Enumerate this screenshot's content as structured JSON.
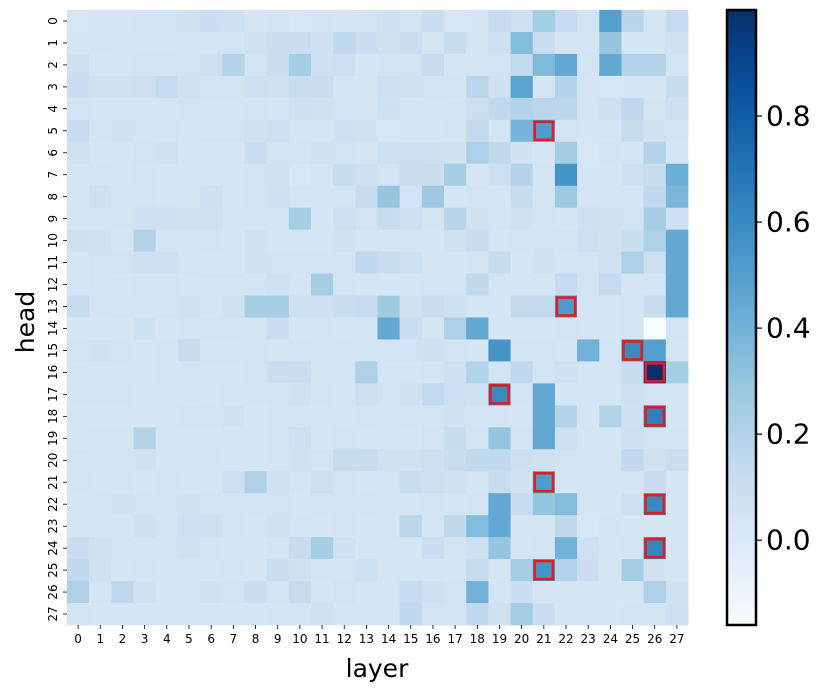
{
  "chart_data": {
    "type": "heatmap",
    "xlabel": "layer",
    "ylabel": "head",
    "x_categories": [
      "0",
      "1",
      "2",
      "3",
      "4",
      "5",
      "6",
      "7",
      "8",
      "9",
      "10",
      "11",
      "12",
      "13",
      "14",
      "15",
      "16",
      "17",
      "18",
      "19",
      "20",
      "21",
      "22",
      "23",
      "24",
      "25",
      "26",
      "27"
    ],
    "y_categories": [
      "0",
      "1",
      "2",
      "3",
      "4",
      "5",
      "6",
      "7",
      "8",
      "9",
      "10",
      "11",
      "12",
      "13",
      "14",
      "15",
      "16",
      "17",
      "18",
      "19",
      "20",
      "21",
      "22",
      "23",
      "24",
      "25",
      "26",
      "27"
    ],
    "colorbar": {
      "vmin": -0.16,
      "vmax": 1.0,
      "ticks": [
        0.0,
        0.2,
        0.4,
        0.6,
        0.8
      ],
      "tick_labels": [
        "0.0",
        "0.2",
        "0.4",
        "0.6",
        "0.8"
      ],
      "colormap": "Blues"
    },
    "values": [
      [
        0.03,
        0.04,
        0.04,
        0.05,
        0.05,
        0.07,
        0.1,
        0.08,
        0.04,
        0.06,
        0.03,
        0.06,
        0.04,
        0.06,
        0.08,
        0.05,
        0.1,
        0.03,
        0.04,
        0.12,
        0.08,
        0.25,
        0.13,
        0.06,
        0.5,
        0.18,
        0.04,
        0.13
      ],
      [
        0.04,
        0.05,
        0.04,
        0.04,
        0.04,
        0.05,
        0.05,
        0.05,
        0.07,
        0.1,
        0.1,
        0.08,
        0.15,
        0.1,
        0.07,
        0.1,
        0.05,
        0.12,
        0.04,
        0.08,
        0.35,
        0.1,
        0.04,
        0.04,
        0.3,
        0.04,
        0.04,
        0.07
      ],
      [
        0.09,
        0.04,
        0.04,
        0.05,
        0.05,
        0.05,
        0.08,
        0.2,
        0.05,
        0.1,
        0.25,
        0.08,
        0.09,
        0.04,
        0.06,
        0.05,
        0.12,
        0.04,
        0.04,
        0.06,
        0.14,
        0.36,
        0.45,
        0.05,
        0.45,
        0.2,
        0.2,
        0.06
      ],
      [
        0.1,
        0.07,
        0.07,
        0.09,
        0.13,
        0.07,
        0.05,
        0.05,
        0.09,
        0.07,
        0.11,
        0.1,
        0.04,
        0.04,
        0.09,
        0.07,
        0.05,
        0.06,
        0.17,
        0.08,
        0.48,
        0.04,
        0.2,
        0.04,
        0.03,
        0.04,
        0.04,
        0.12
      ],
      [
        0.06,
        0.04,
        0.04,
        0.04,
        0.04,
        0.06,
        0.04,
        0.04,
        0.05,
        0.04,
        0.08,
        0.07,
        0.04,
        0.04,
        0.08,
        0.04,
        0.04,
        0.04,
        0.09,
        0.15,
        0.2,
        0.17,
        0.17,
        0.04,
        0.08,
        0.16,
        0.05,
        0.08
      ],
      [
        0.12,
        0.05,
        0.07,
        0.05,
        0.05,
        0.04,
        0.06,
        0.06,
        0.07,
        0.09,
        0.05,
        0.04,
        0.08,
        0.07,
        0.03,
        0.04,
        0.04,
        0.05,
        0.14,
        0.05,
        0.39,
        0.52,
        0.05,
        0.04,
        0.04,
        0.12,
        0.07,
        0.05
      ],
      [
        0.07,
        0.04,
        0.04,
        0.06,
        0.07,
        0.04,
        0.04,
        0.04,
        0.1,
        0.05,
        0.06,
        0.07,
        0.06,
        0.04,
        0.08,
        0.09,
        0.08,
        0.07,
        0.22,
        0.15,
        0.07,
        0.04,
        0.26,
        0.03,
        0.06,
        0.04,
        0.2,
        0.04
      ],
      [
        0.04,
        0.05,
        0.04,
        0.05,
        0.04,
        0.04,
        0.04,
        0.04,
        0.05,
        0.07,
        0.03,
        0.05,
        0.12,
        0.09,
        0.05,
        0.1,
        0.1,
        0.25,
        0.04,
        0.09,
        0.2,
        0.05,
        0.55,
        0.04,
        0.04,
        0.08,
        0.12,
        0.42
      ],
      [
        0.04,
        0.08,
        0.05,
        0.05,
        0.04,
        0.05,
        0.08,
        0.04,
        0.05,
        0.08,
        0.05,
        0.05,
        0.05,
        0.12,
        0.3,
        0.06,
        0.28,
        0.04,
        0.06,
        0.04,
        0.12,
        0.05,
        0.28,
        0.04,
        0.04,
        0.04,
        0.15,
        0.38
      ],
      [
        0.05,
        0.05,
        0.05,
        0.08,
        0.08,
        0.07,
        0.07,
        0.04,
        0.04,
        0.04,
        0.25,
        0.04,
        0.09,
        0.06,
        0.12,
        0.09,
        0.05,
        0.18,
        0.07,
        0.06,
        0.07,
        0.05,
        0.04,
        0.08,
        0.07,
        0.06,
        0.25,
        0.08
      ],
      [
        0.08,
        0.07,
        0.04,
        0.2,
        0.04,
        0.05,
        0.06,
        0.04,
        0.07,
        0.04,
        0.05,
        0.04,
        0.07,
        0.04,
        0.04,
        0.04,
        0.04,
        0.07,
        0.12,
        0.04,
        0.05,
        0.05,
        0.06,
        0.09,
        0.07,
        0.11,
        0.22,
        0.45
      ],
      [
        0.04,
        0.06,
        0.06,
        0.09,
        0.09,
        0.05,
        0.04,
        0.04,
        0.07,
        0.06,
        0.06,
        0.06,
        0.05,
        0.15,
        0.11,
        0.08,
        0.04,
        0.04,
        0.05,
        0.12,
        0.04,
        0.07,
        0.04,
        0.05,
        0.07,
        0.22,
        0.09,
        0.45
      ],
      [
        0.04,
        0.06,
        0.04,
        0.05,
        0.05,
        0.04,
        0.06,
        0.06,
        0.05,
        0.07,
        0.04,
        0.25,
        0.05,
        0.04,
        0.04,
        0.04,
        0.05,
        0.05,
        0.15,
        0.05,
        0.04,
        0.04,
        0.13,
        0.06,
        0.13,
        0.04,
        0.04,
        0.45
      ],
      [
        0.12,
        0.05,
        0.06,
        0.05,
        0.06,
        0.07,
        0.04,
        0.07,
        0.25,
        0.25,
        0.08,
        0.08,
        0.11,
        0.13,
        0.27,
        0.07,
        0.1,
        0.08,
        0.05,
        0.04,
        0.14,
        0.14,
        0.52,
        0.04,
        0.04,
        0.05,
        0.12,
        0.45
      ],
      [
        0.04,
        0.04,
        0.04,
        0.08,
        0.04,
        0.06,
        0.06,
        0.06,
        0.05,
        0.1,
        0.04,
        0.05,
        0.04,
        0.06,
        0.45,
        0.1,
        0.05,
        0.22,
        0.45,
        0.04,
        0.04,
        0.04,
        0.06,
        0.04,
        0.04,
        0.05,
        -0.16,
        0.06
      ],
      [
        0.06,
        0.07,
        0.05,
        0.04,
        0.05,
        0.12,
        0.05,
        0.05,
        0.05,
        0.04,
        0.06,
        0.05,
        0.05,
        0.06,
        0.06,
        0.06,
        0.08,
        0.05,
        0.04,
        0.55,
        0.05,
        0.05,
        0.04,
        0.4,
        0.05,
        0.6,
        0.5,
        0.05
      ],
      [
        0.04,
        0.04,
        0.04,
        0.04,
        0.05,
        0.05,
        0.04,
        0.04,
        0.05,
        0.1,
        0.1,
        0.05,
        0.05,
        0.22,
        0.04,
        0.04,
        0.05,
        0.08,
        0.2,
        0.06,
        0.15,
        0.05,
        0.08,
        0.04,
        0.06,
        0.12,
        1.0,
        0.25
      ],
      [
        0.05,
        0.05,
        0.05,
        0.04,
        0.04,
        0.04,
        0.04,
        0.05,
        0.05,
        0.06,
        0.07,
        0.05,
        0.04,
        0.09,
        0.06,
        0.07,
        0.14,
        0.08,
        0.07,
        0.6,
        0.05,
        0.45,
        0.04,
        0.04,
        0.04,
        0.09,
        0.06,
        0.05
      ],
      [
        0.04,
        0.04,
        0.04,
        0.04,
        0.04,
        0.06,
        0.05,
        0.07,
        0.04,
        0.05,
        0.04,
        0.04,
        0.04,
        0.05,
        0.05,
        0.05,
        0.05,
        0.07,
        0.05,
        0.06,
        0.04,
        0.45,
        0.2,
        0.04,
        0.2,
        0.08,
        0.65,
        0.05
      ],
      [
        0.04,
        0.05,
        0.05,
        0.2,
        0.04,
        0.04,
        0.04,
        0.04,
        0.04,
        0.05,
        0.08,
        0.04,
        0.05,
        0.04,
        0.05,
        0.04,
        0.06,
        0.12,
        0.06,
        0.3,
        0.05,
        0.45,
        0.08,
        0.05,
        0.04,
        0.09,
        0.06,
        0.06
      ],
      [
        0.06,
        0.05,
        0.05,
        0.07,
        0.04,
        0.04,
        0.05,
        0.04,
        0.04,
        0.05,
        0.07,
        0.06,
        0.12,
        0.12,
        0.07,
        0.07,
        0.09,
        0.11,
        0.15,
        0.15,
        0.09,
        0.07,
        0.06,
        0.06,
        0.04,
        0.15,
        0.07,
        0.1
      ],
      [
        0.05,
        0.04,
        0.05,
        0.04,
        0.05,
        0.04,
        0.04,
        0.09,
        0.22,
        0.07,
        0.05,
        0.09,
        0.05,
        0.04,
        0.05,
        0.11,
        0.09,
        0.07,
        0.04,
        0.12,
        0.07,
        0.52,
        0.05,
        0.05,
        0.04,
        0.04,
        0.12,
        0.04
      ],
      [
        0.04,
        0.05,
        0.07,
        0.05,
        0.05,
        0.07,
        0.05,
        0.05,
        0.05,
        0.06,
        0.04,
        0.05,
        0.05,
        0.05,
        0.05,
        0.04,
        0.05,
        0.04,
        0.06,
        0.45,
        0.12,
        0.3,
        0.35,
        0.05,
        0.04,
        0.09,
        0.6,
        0.04
      ],
      [
        0.04,
        0.05,
        0.04,
        0.08,
        0.05,
        0.08,
        0.08,
        0.05,
        0.04,
        0.07,
        0.05,
        0.04,
        0.05,
        0.04,
        0.05,
        0.17,
        0.05,
        0.15,
        0.35,
        0.45,
        0.04,
        0.04,
        0.15,
        0.03,
        0.05,
        0.04,
        0.04,
        0.04
      ],
      [
        0.1,
        0.07,
        0.06,
        0.05,
        0.05,
        0.07,
        0.05,
        0.04,
        0.04,
        0.05,
        0.12,
        0.25,
        0.08,
        0.04,
        0.04,
        0.04,
        0.1,
        0.05,
        0.08,
        0.3,
        0.04,
        0.05,
        0.4,
        0.08,
        0.04,
        0.05,
        0.62,
        0.04
      ],
      [
        0.15,
        0.07,
        0.04,
        0.05,
        0.04,
        0.04,
        0.04,
        0.05,
        0.04,
        0.1,
        0.07,
        0.05,
        0.05,
        0.08,
        0.04,
        0.04,
        0.04,
        0.04,
        0.12,
        0.04,
        0.25,
        0.55,
        0.2,
        0.1,
        0.04,
        0.25,
        0.07,
        0.05
      ],
      [
        0.22,
        0.05,
        0.16,
        0.07,
        0.04,
        0.04,
        0.07,
        0.06,
        0.11,
        0.06,
        0.12,
        0.04,
        0.06,
        0.04,
        0.04,
        0.13,
        0.08,
        0.06,
        0.4,
        0.05,
        0.1,
        0.04,
        0.04,
        0.04,
        0.04,
        0.04,
        0.22,
        0.07
      ],
      [
        0.05,
        0.04,
        0.04,
        0.04,
        0.04,
        0.04,
        0.04,
        0.04,
        0.04,
        0.05,
        0.05,
        0.07,
        0.04,
        0.04,
        0.04,
        0.15,
        0.06,
        0.06,
        0.15,
        0.07,
        0.25,
        0.1,
        0.04,
        0.04,
        0.04,
        0.05,
        0.05,
        0.08
      ]
    ],
    "highlighted_cells": [
      {
        "layer": 21,
        "head": 5
      },
      {
        "layer": 22,
        "head": 13
      },
      {
        "layer": 25,
        "head": 15
      },
      {
        "layer": 26,
        "head": 16
      },
      {
        "layer": 19,
        "head": 17
      },
      {
        "layer": 26,
        "head": 18
      },
      {
        "layer": 21,
        "head": 21
      },
      {
        "layer": 26,
        "head": 22
      },
      {
        "layer": 26,
        "head": 24
      },
      {
        "layer": 21,
        "head": 25
      }
    ],
    "highlight_color": "#e41a1c"
  }
}
